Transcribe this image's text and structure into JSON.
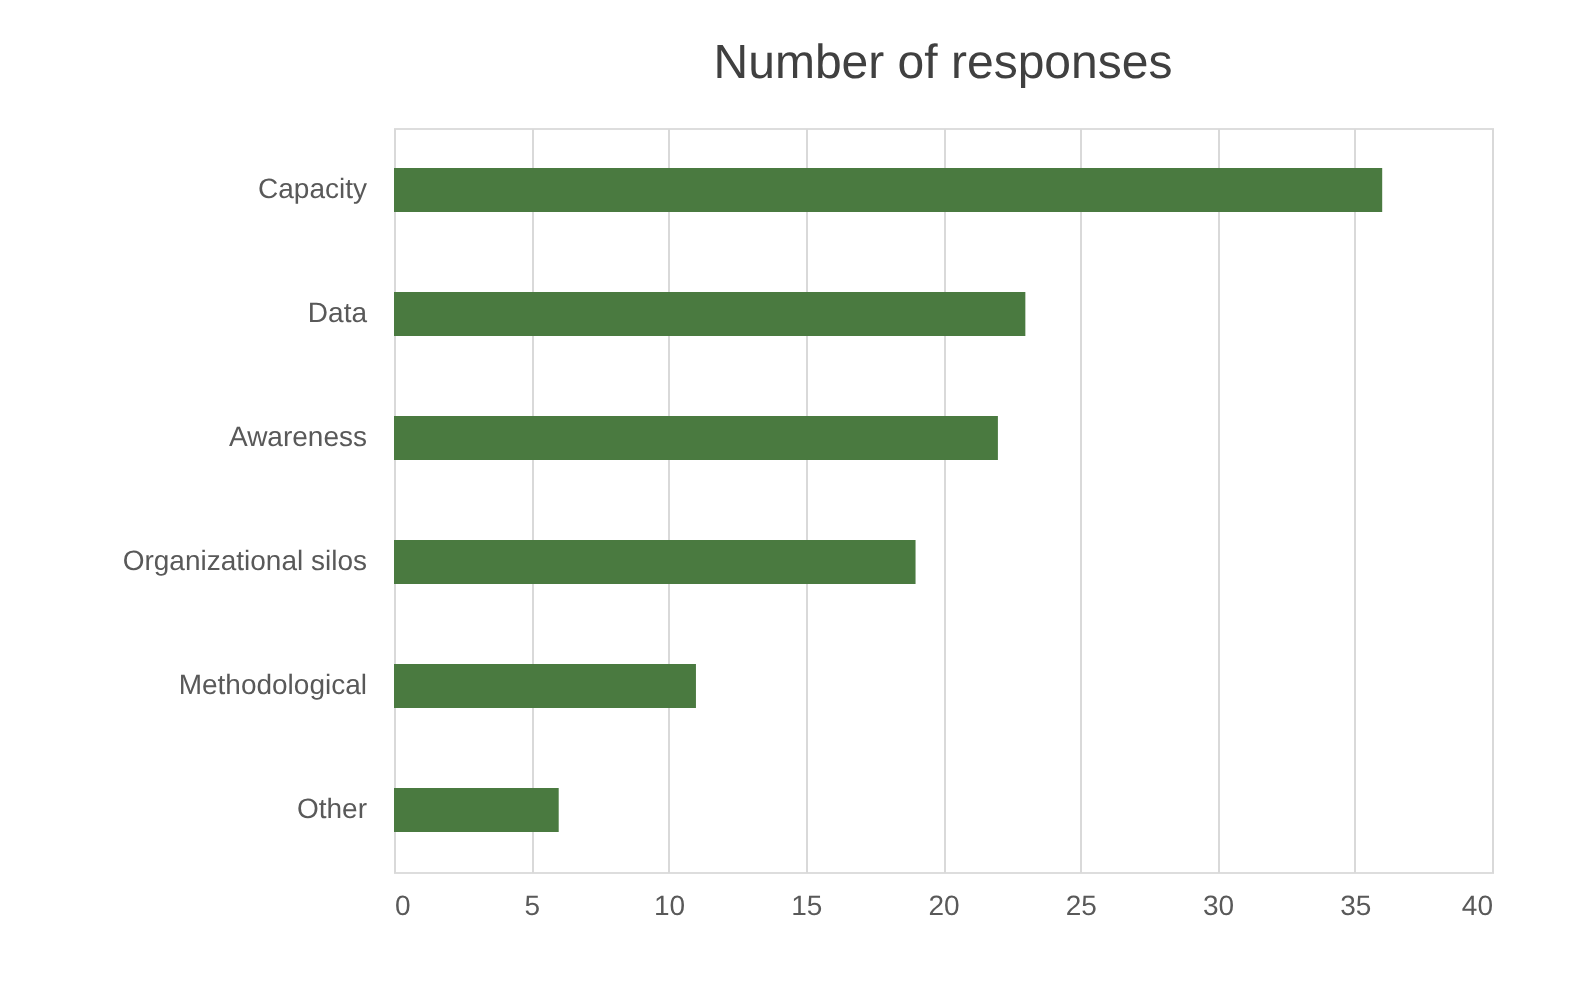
{
  "chart_data": {
    "type": "bar",
    "orientation": "horizontal",
    "title": "Number of responses",
    "categories": [
      "Capacity",
      "Data",
      "Awareness",
      "Organizational silos",
      "Methodological",
      "Other"
    ],
    "values": [
      36,
      23,
      22,
      19,
      11,
      6
    ],
    "color": "#4a7a40",
    "xlim": [
      0,
      40
    ],
    "xticks": [
      0,
      5,
      10,
      15,
      20,
      25,
      30,
      35,
      40
    ],
    "grid": "x"
  }
}
